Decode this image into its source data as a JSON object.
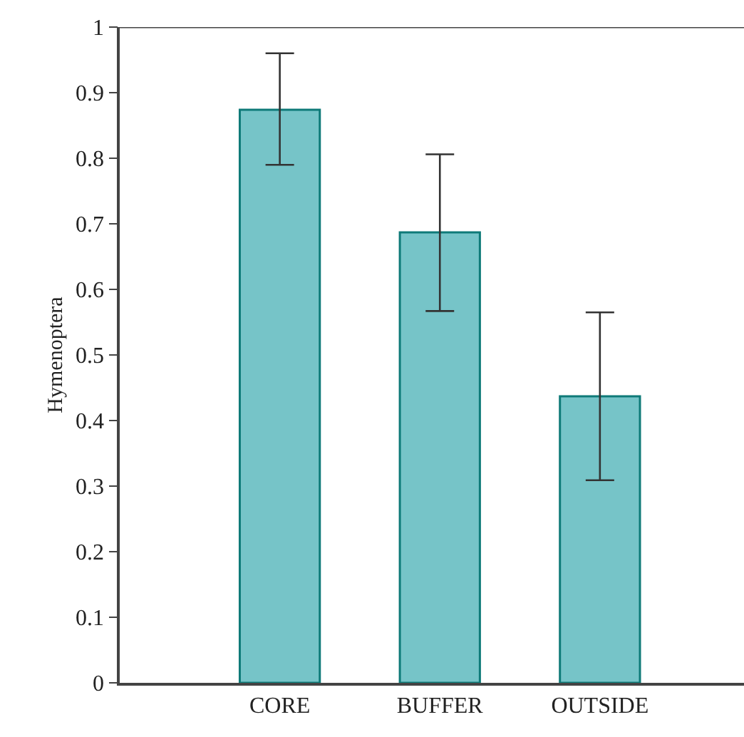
{
  "chart_data": {
    "type": "bar",
    "ylabel": "Hymenoptera",
    "categories": [
      "CORE",
      "BUFFER",
      "OUTSIDE"
    ],
    "values": [
      0.874,
      0.687,
      0.437
    ],
    "errors": [
      [
        0.79,
        0.96
      ],
      [
        0.567,
        0.806
      ],
      [
        0.309,
        0.565
      ]
    ],
    "color": "#76c4c8",
    "ylim": [
      0,
      1
    ],
    "yticks": [
      0,
      0.1,
      0.2,
      0.3,
      0.4,
      0.5,
      0.6,
      0.7,
      0.8,
      0.9,
      1
    ],
    "grid": false,
    "legend": false
  }
}
